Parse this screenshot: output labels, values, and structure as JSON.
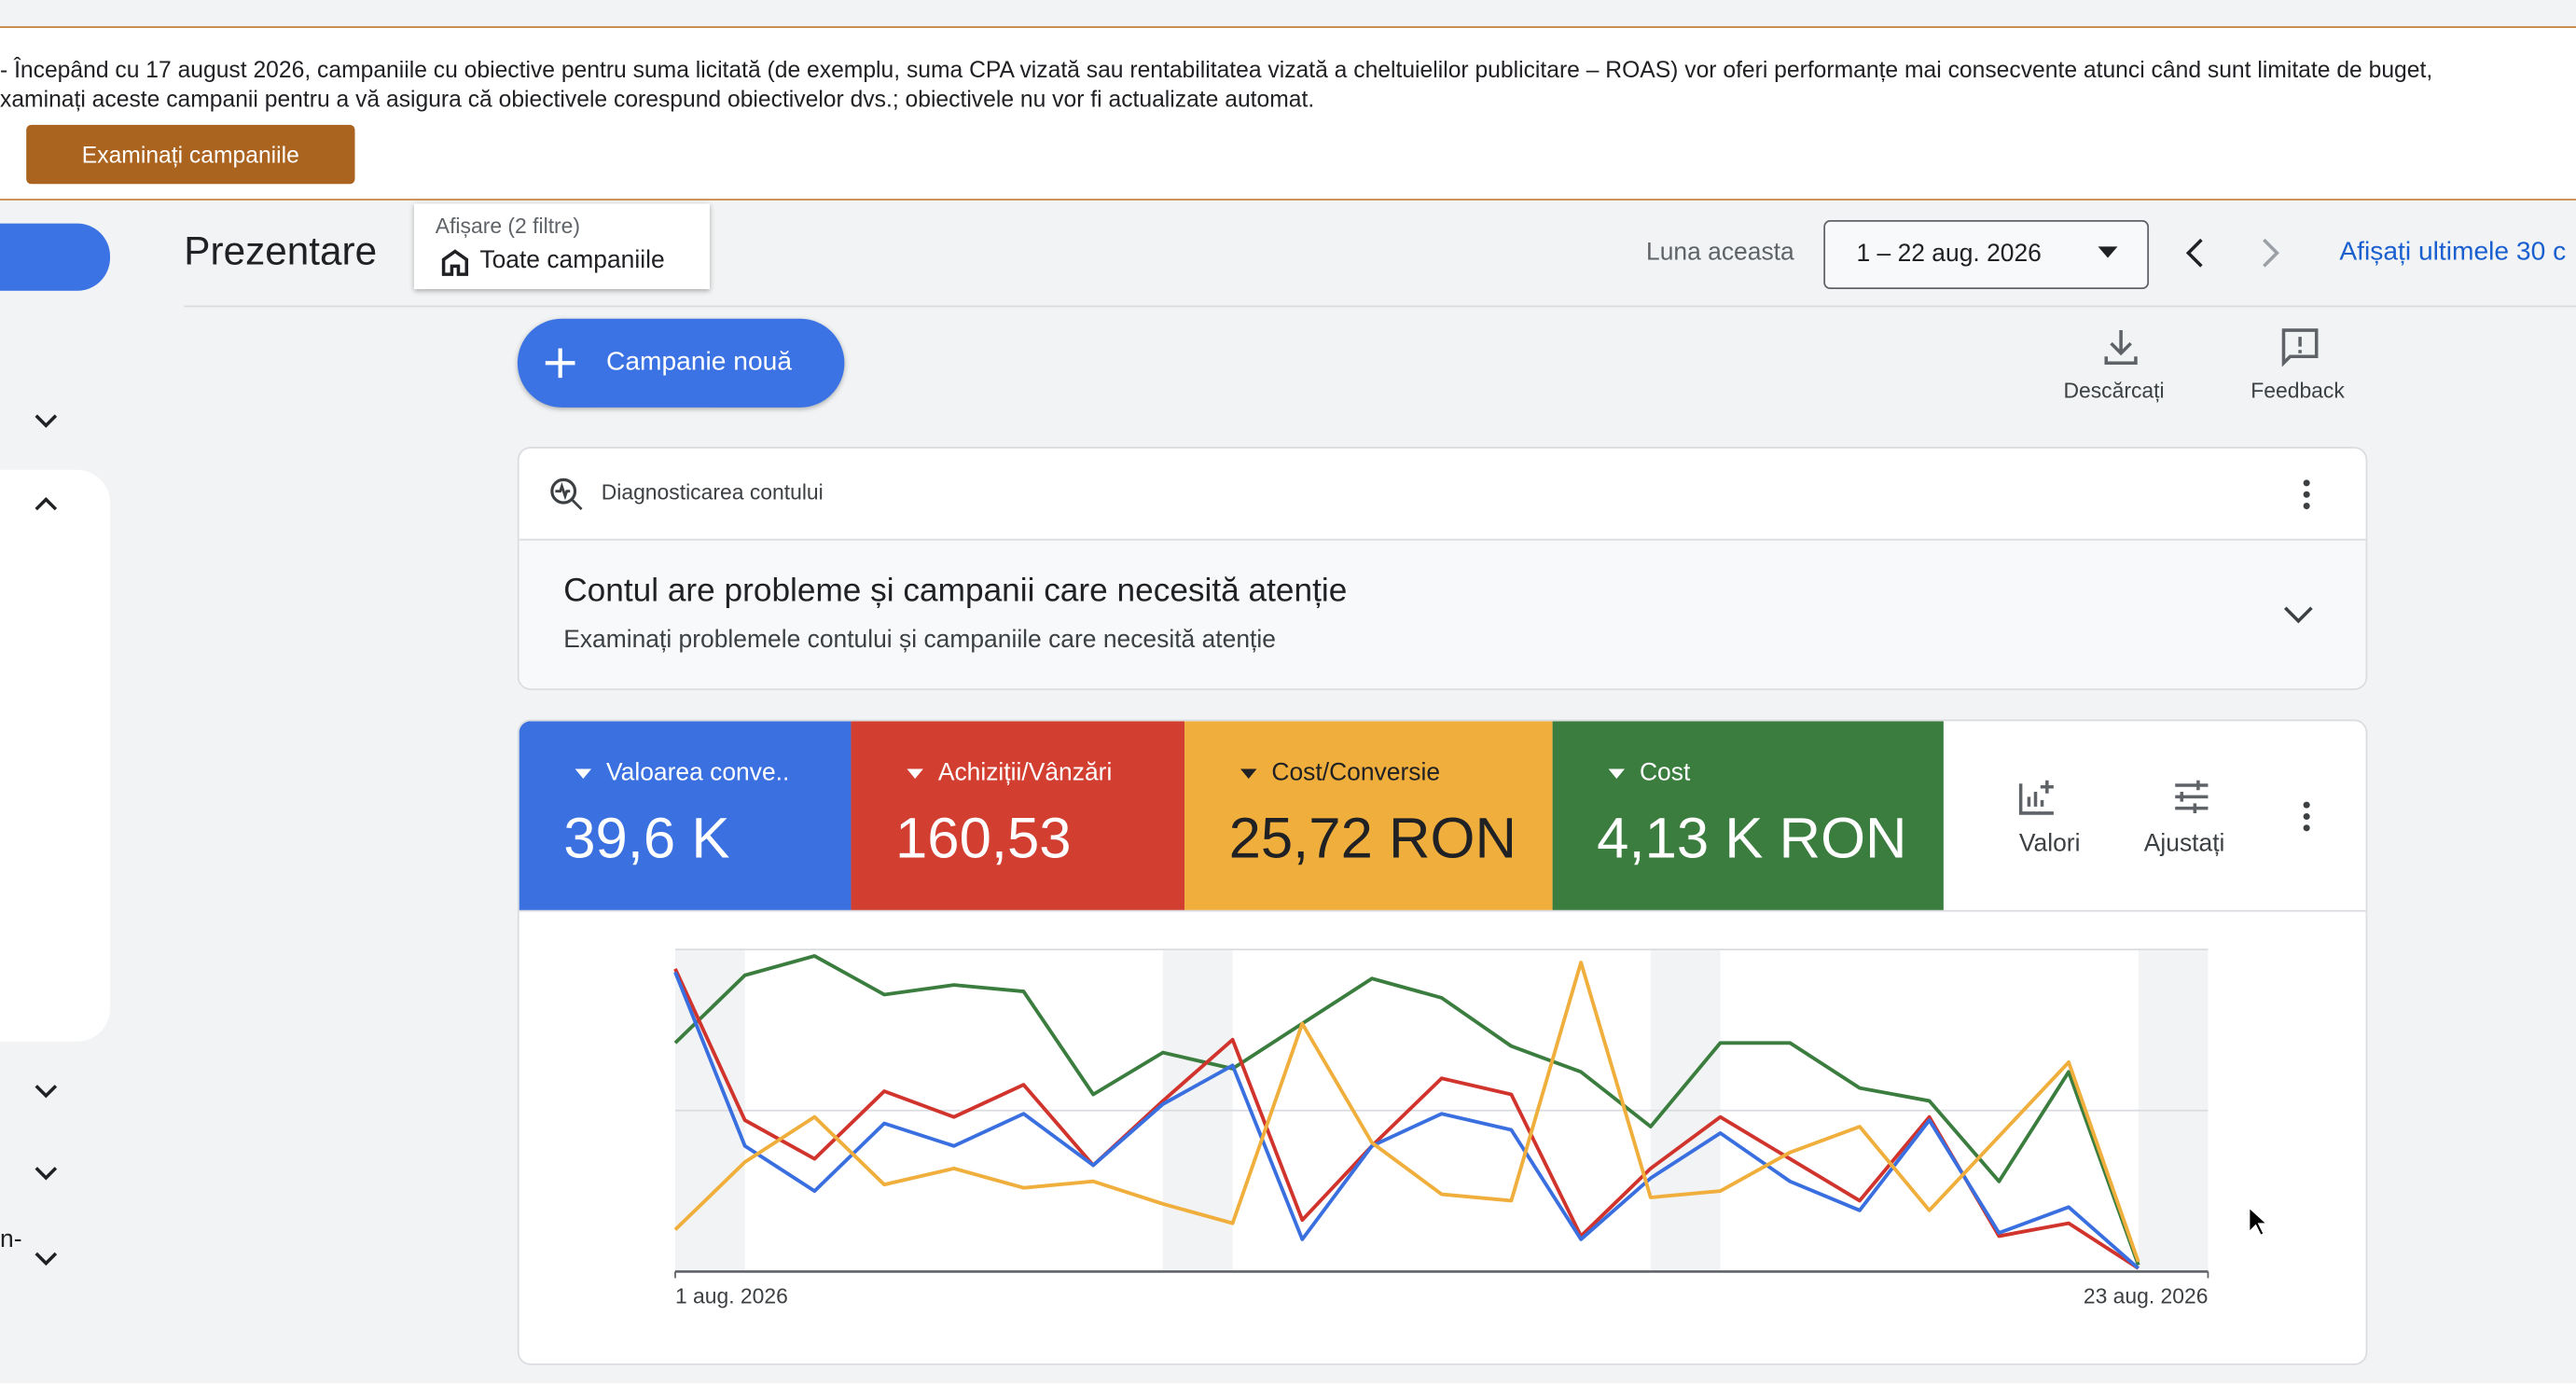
{
  "banner": {
    "line1": "- Începând cu 17 august 2026, campaniile cu obiective pentru suma licitată (de exemplu, suma CPA vizată sau rentabilitatea vizată a cheltuielilor publicitare – ROAS) vor oferi performanțe mai consecvente atunci când sunt limitate de buget,",
    "line2": "xaminați aceste campanii pentru a vă asigura că obiectivele corespund obiectivelor dvs.; obiectivele nu vor fi actualizate automat.",
    "button": "Examinați campaniile"
  },
  "sidebar": {
    "item": "n-"
  },
  "header": {
    "title": "Prezentare",
    "filter_label": "Afișare (2 filtre)",
    "filter_value": "Toate campaniile",
    "date_label": "Luna aceasta",
    "date_range": "1 – 22 aug. 2026",
    "link": "Afișați ultimele 30 c"
  },
  "actions": {
    "new_campaign": "Campanie nouă",
    "download": "Descărcați",
    "feedback": "Feedback"
  },
  "diagnostics": {
    "label": "Diagnosticarea contului",
    "title": "Contul are probleme și campanii care necesită atenție",
    "subtitle": "Examinați problemele contului și campaniile care necesită atenție"
  },
  "scorecards": [
    {
      "label": "Valoarea conve..",
      "value": "39,6 K",
      "color": "#3a70e0"
    },
    {
      "label": "Achiziții/Vânzări",
      "value": "160,53",
      "color": "#d23f31"
    },
    {
      "label": "Cost/Conversie",
      "value": "25,72 RON",
      "color": "#f0ae3c"
    },
    {
      "label": "Cost",
      "value": "4,13 K RON",
      "color": "#3a7d3e"
    }
  ],
  "tools": [
    "Valori",
    "Ajustați"
  ],
  "chart_data": {
    "type": "line",
    "x": [
      1,
      2,
      3,
      4,
      5,
      6,
      7,
      8,
      9,
      10,
      11,
      12,
      13,
      14,
      15,
      16,
      17,
      18,
      19,
      20,
      21,
      22
    ],
    "xlim": [
      1,
      23
    ],
    "xticks": [
      {
        "value": 1,
        "label": "1 aug. 2026"
      },
      {
        "value": 23,
        "label": "23 aug. 2026"
      }
    ],
    "ylim": [
      0,
      100
    ],
    "series": [
      {
        "name": "Cost",
        "color": "#3a7d3e",
        "values": [
          71,
          92,
          98,
          86,
          89,
          87,
          55,
          68,
          63,
          77,
          91,
          85,
          70,
          62,
          45,
          71,
          71,
          57,
          53,
          28,
          62,
          2
        ]
      },
      {
        "name": "Achiziții/Vânzări",
        "color": "#d0342c",
        "values": [
          94,
          47,
          35,
          56,
          48,
          58,
          33,
          53,
          72,
          16,
          39,
          60,
          55,
          11,
          32,
          48,
          35,
          22,
          48,
          11,
          15,
          1
        ]
      },
      {
        "name": "Valoarea conve..",
        "color": "#3a6fe0",
        "values": [
          93,
          39,
          25,
          46,
          39,
          49,
          33,
          52,
          64,
          10,
          39,
          49,
          44,
          10,
          29,
          43,
          28,
          19,
          47,
          12,
          20,
          1
        ]
      },
      {
        "name": "Cost/Conversie",
        "color": "#f0ae3c",
        "values": [
          13,
          34,
          48,
          27,
          32,
          26,
          28,
          21,
          15,
          77,
          40,
          24,
          22,
          96,
          23,
          25,
          37,
          45,
          19,
          42,
          65,
          3
        ]
      }
    ]
  }
}
